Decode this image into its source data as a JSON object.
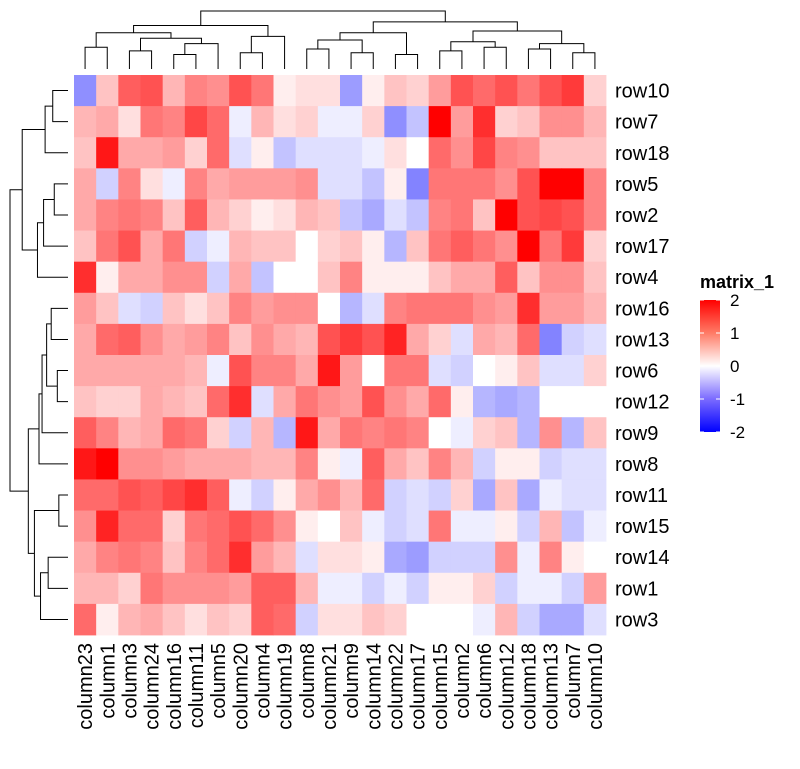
{
  "chart_data": {
    "type": "heatmap",
    "rows": [
      "row10",
      "row7",
      "row18",
      "row5",
      "row2",
      "row17",
      "row4",
      "row16",
      "row13",
      "row6",
      "row12",
      "row9",
      "row8",
      "row11",
      "row15",
      "row14",
      "row1",
      "row3"
    ],
    "columns": [
      "column23",
      "column1",
      "column3",
      "column24",
      "column16",
      "column11",
      "column5",
      "column20",
      "column4",
      "column19",
      "column8",
      "column21",
      "column9",
      "column14",
      "column22",
      "column17",
      "column15",
      "column2",
      "column6",
      "column12",
      "column18",
      "column13",
      "column7",
      "column10"
    ],
    "values": [
      [
        -0.8,
        0.4,
        1.2,
        1.3,
        0.5,
        0.9,
        0.8,
        1.3,
        1.0,
        0.1,
        0.2,
        0.2,
        -0.7,
        0.1,
        0.4,
        0.3,
        0.7,
        1.3,
        1.1,
        1.3,
        1.0,
        1.3,
        1.5,
        0.3
      ],
      [
        0.5,
        0.6,
        0.2,
        1.0,
        0.9,
        1.4,
        1.1,
        -0.1,
        0.5,
        0.2,
        0.3,
        -0.1,
        -0.1,
        0.3,
        -0.8,
        -0.4,
        2.1,
        0.7,
        1.6,
        0.3,
        0.4,
        0.8,
        0.8,
        0.5
      ],
      [
        0.4,
        1.8,
        0.6,
        0.6,
        0.7,
        0.3,
        1.1,
        -0.2,
        0.1,
        -0.4,
        -0.2,
        -0.2,
        -0.2,
        -0.1,
        0.2,
        0.0,
        1.1,
        0.8,
        1.4,
        0.9,
        0.8,
        0.4,
        0.4,
        0.4
      ],
      [
        0.6,
        -0.3,
        0.9,
        0.2,
        -0.1,
        0.9,
        0.6,
        0.7,
        0.7,
        0.7,
        0.8,
        -0.2,
        -0.2,
        -0.4,
        0.1,
        -0.9,
        1.0,
        1.0,
        1.0,
        0.8,
        1.3,
        2.0,
        2.0,
        0.9
      ],
      [
        0.6,
        0.9,
        1.0,
        0.9,
        0.4,
        1.2,
        0.5,
        0.3,
        0.1,
        0.2,
        0.5,
        0.4,
        -0.4,
        -0.6,
        -0.2,
        -0.4,
        0.9,
        1.0,
        0.4,
        2.0,
        1.3,
        1.4,
        1.3,
        0.9
      ],
      [
        0.4,
        1.0,
        1.3,
        0.6,
        1.0,
        -0.3,
        -0.1,
        0.5,
        0.4,
        0.4,
        0.0,
        0.3,
        0.4,
        0.1,
        -0.5,
        0.4,
        1.0,
        1.2,
        1.0,
        0.8,
        2.1,
        1.0,
        1.5,
        0.3
      ],
      [
        1.6,
        0.1,
        0.6,
        0.6,
        0.8,
        0.8,
        -0.3,
        0.6,
        -0.4,
        0.0,
        0.0,
        0.4,
        0.9,
        0.1,
        0.1,
        0.1,
        0.4,
        0.6,
        0.6,
        1.2,
        0.4,
        0.8,
        0.8,
        0.4
      ],
      [
        0.7,
        0.4,
        -0.2,
        -0.3,
        0.4,
        0.2,
        0.4,
        0.9,
        0.7,
        0.8,
        0.8,
        0.0,
        -0.5,
        -0.2,
        0.9,
        1.0,
        1.0,
        1.0,
        0.8,
        0.7,
        1.6,
        0.7,
        0.7,
        0.5
      ],
      [
        0.6,
        1.1,
        1.2,
        0.8,
        0.6,
        0.7,
        0.9,
        0.4,
        0.8,
        0.6,
        0.5,
        1.3,
        1.5,
        1.3,
        1.7,
        0.6,
        0.3,
        -0.2,
        0.6,
        0.5,
        1.1,
        -0.9,
        -0.3,
        -0.2
      ],
      [
        0.6,
        0.6,
        0.6,
        0.6,
        0.6,
        0.5,
        -0.1,
        1.3,
        0.9,
        0.9,
        0.6,
        1.8,
        0.7,
        0.0,
        1.0,
        1.0,
        -0.2,
        -0.3,
        0.0,
        0.1,
        0.4,
        -0.2,
        -0.2,
        0.3
      ],
      [
        0.4,
        0.3,
        0.3,
        0.6,
        0.5,
        0.4,
        1.1,
        1.6,
        -0.2,
        0.6,
        1.0,
        0.8,
        0.7,
        1.3,
        0.8,
        0.6,
        1.1,
        0.1,
        -0.5,
        -0.6,
        -0.5,
        0.0,
        0.0,
        0.0
      ],
      [
        1.2,
        0.9,
        0.5,
        0.6,
        1.1,
        1.0,
        0.3,
        -0.3,
        0.5,
        -0.5,
        1.8,
        0.6,
        1.0,
        0.9,
        1.0,
        0.9,
        0.0,
        -0.1,
        0.3,
        0.4,
        -0.5,
        0.8,
        -0.5,
        0.4
      ],
      [
        1.8,
        2.0,
        0.8,
        0.8,
        0.7,
        0.6,
        0.6,
        0.6,
        0.5,
        0.5,
        0.9,
        0.1,
        -0.1,
        1.2,
        0.6,
        0.4,
        0.9,
        0.5,
        -0.3,
        0.1,
        0.1,
        -0.3,
        -0.2,
        -0.2
      ],
      [
        1.1,
        1.1,
        1.3,
        1.2,
        1.4,
        1.6,
        1.2,
        -0.1,
        -0.3,
        0.1,
        0.6,
        0.8,
        0.5,
        1.1,
        -0.3,
        -0.2,
        -0.3,
        0.3,
        -0.6,
        0.4,
        -0.6,
        -0.1,
        -0.2,
        -0.2
      ],
      [
        0.8,
        1.7,
        1.1,
        1.1,
        0.3,
        1.0,
        1.1,
        1.3,
        1.1,
        0.8,
        0.1,
        0.0,
        0.4,
        -0.1,
        -0.3,
        -0.2,
        1.0,
        -0.1,
        -0.1,
        0.1,
        -0.3,
        0.5,
        -0.4,
        -0.1
      ],
      [
        0.6,
        0.9,
        1.0,
        0.9,
        0.4,
        0.9,
        1.1,
        1.6,
        0.7,
        0.5,
        -0.2,
        0.2,
        0.2,
        0.1,
        -0.6,
        -0.7,
        -0.3,
        -0.3,
        -0.3,
        0.8,
        -0.1,
        0.9,
        0.1,
        0.0
      ],
      [
        0.5,
        0.5,
        0.3,
        1.0,
        0.8,
        0.8,
        0.8,
        0.7,
        1.2,
        1.2,
        0.5,
        -0.1,
        -0.1,
        -0.3,
        -0.1,
        -0.3,
        0.1,
        0.1,
        0.3,
        -0.3,
        -0.1,
        -0.1,
        -0.3,
        0.7
      ],
      [
        1.1,
        0.1,
        0.5,
        0.6,
        0.4,
        0.2,
        0.4,
        0.3,
        1.2,
        1.1,
        -0.3,
        0.2,
        0.2,
        0.4,
        0.3,
        0.0,
        0.0,
        0.0,
        -0.1,
        0.5,
        -0.3,
        -0.6,
        -0.6,
        -0.2
      ]
    ],
    "colors": {
      "low": "#0000ff",
      "mid": "#ffffff",
      "high": "#ff0000"
    },
    "range": [
      -2,
      2
    ],
    "legend": {
      "title": "matrix_1",
      "ticks": [
        {
          "label": "2",
          "value": 2
        },
        {
          "label": "1",
          "value": 1
        },
        {
          "label": "0",
          "value": 0
        },
        {
          "label": "-1",
          "value": -1
        },
        {
          "label": "-2",
          "value": -2
        }
      ],
      "placement": "right"
    },
    "row_dendrogram": {
      "merges": [
        [
          0,
          1,
          0.5
        ],
        [
          2,
          18,
          0.75
        ],
        [
          3,
          4,
          0.45
        ],
        [
          20,
          5,
          0.8
        ],
        [
          21,
          6,
          1.0
        ],
        [
          7,
          8,
          0.55
        ],
        [
          9,
          10,
          0.35
        ],
        [
          23,
          24,
          0.7
        ],
        [
          25,
          11,
          0.85
        ],
        [
          26,
          12,
          0.95
        ],
        [
          13,
          14,
          0.3
        ],
        [
          15,
          16,
          0.65
        ],
        [
          29,
          17,
          0.9
        ],
        [
          28,
          30,
          1.1
        ],
        [
          27,
          31,
          1.3
        ],
        [
          19,
          22,
          1.5
        ],
        [
          32,
          33,
          1.9
        ]
      ]
    },
    "column_dendrogram": {
      "merges": [
        [
          0,
          1,
          0.6
        ],
        [
          2,
          3,
          0.5
        ],
        [
          4,
          5,
          0.4
        ],
        [
          26,
          6,
          0.7
        ],
        [
          25,
          27,
          0.85
        ],
        [
          24,
          28,
          1.0
        ],
        [
          7,
          8,
          0.45
        ],
        [
          30,
          9,
          0.9
        ],
        [
          29,
          31,
          1.2
        ],
        [
          10,
          11,
          0.55
        ],
        [
          12,
          13,
          0.45
        ],
        [
          33,
          34,
          0.8
        ],
        [
          14,
          15,
          0.4
        ],
        [
          35,
          36,
          1.0
        ],
        [
          16,
          17,
          0.5
        ],
        [
          18,
          19,
          0.6
        ],
        [
          38,
          39,
          0.75
        ],
        [
          20,
          21,
          0.55
        ],
        [
          22,
          23,
          0.45
        ],
        [
          41,
          42,
          0.7
        ],
        [
          40,
          43,
          1.05
        ],
        [
          37,
          44,
          1.3
        ],
        [
          32,
          45,
          1.6
        ]
      ]
    }
  }
}
